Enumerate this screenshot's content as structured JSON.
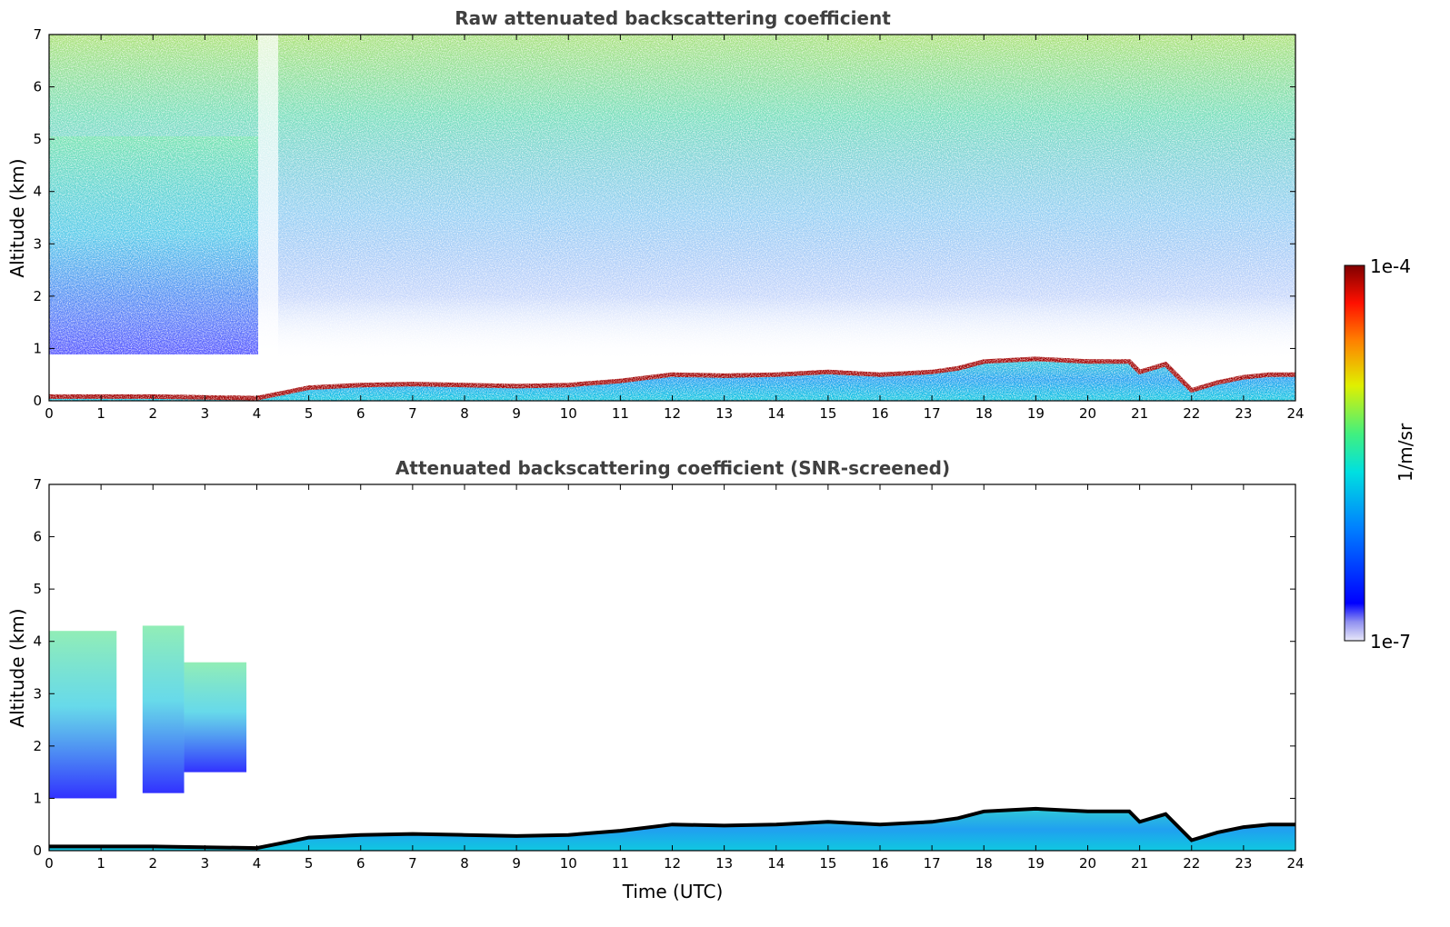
{
  "chart_data": [
    {
      "type": "heatmap",
      "title": "Raw attenuated backscattering coefficient",
      "xlabel": "",
      "ylabel": "Altitude (km)",
      "xlim": [
        0,
        24
      ],
      "ylim": [
        0,
        7
      ],
      "x_ticks": [
        "0",
        "1",
        "2",
        "3",
        "4",
        "5",
        "6",
        "7",
        "8",
        "9",
        "10",
        "11",
        "12",
        "13",
        "14",
        "15",
        "16",
        "17",
        "18",
        "19",
        "20",
        "21",
        "22",
        "23",
        "24"
      ],
      "y_ticks": [
        "0",
        "1",
        "2",
        "3",
        "4",
        "5",
        "6",
        "7"
      ],
      "boundary_layer_top_km": {
        "time_utc": [
          0,
          2,
          4,
          4.5,
          5,
          6,
          7,
          8,
          9,
          10,
          11,
          12,
          13,
          14,
          15,
          16,
          17,
          17.5,
          18,
          19,
          20,
          20.8,
          21,
          21.5,
          22,
          22.5,
          23,
          23.5,
          24
        ],
        "altitude_km": [
          0.08,
          0.08,
          0.05,
          0.15,
          0.25,
          0.3,
          0.32,
          0.3,
          0.28,
          0.3,
          0.38,
          0.5,
          0.48,
          0.5,
          0.55,
          0.5,
          0.55,
          0.62,
          0.75,
          0.8,
          0.75,
          0.75,
          0.55,
          0.7,
          0.2,
          0.35,
          0.45,
          0.5,
          0.5
        ]
      }
    },
    {
      "type": "heatmap",
      "title": "Attenuated backscattering coefficient (SNR-screened)",
      "xlabel": "Time (UTC)",
      "ylabel": "Altitude (km)",
      "xlim": [
        0,
        24
      ],
      "ylim": [
        0,
        7
      ],
      "x_ticks": [
        "0",
        "1",
        "2",
        "3",
        "4",
        "5",
        "6",
        "7",
        "8",
        "9",
        "10",
        "11",
        "12",
        "13",
        "14",
        "15",
        "16",
        "17",
        "18",
        "19",
        "20",
        "21",
        "22",
        "23",
        "24"
      ],
      "y_ticks": [
        "0",
        "1",
        "2",
        "3",
        "4",
        "5",
        "6",
        "7"
      ],
      "screened_layers_km": [
        {
          "t0": 0.0,
          "t1": 1.3,
          "z0": 1.0,
          "z1": 4.2
        },
        {
          "t0": 1.8,
          "t1": 2.6,
          "z0": 1.1,
          "z1": 4.3
        },
        {
          "t0": 2.6,
          "t1": 3.8,
          "z0": 1.5,
          "z1": 3.6
        }
      ]
    }
  ],
  "colorbar": {
    "label": "1/m/sr",
    "max_label": "1e-4",
    "min_label": "1e-7",
    "scale": "log",
    "range": [
      1e-07,
      0.0001
    ],
    "colormap": "jet"
  }
}
